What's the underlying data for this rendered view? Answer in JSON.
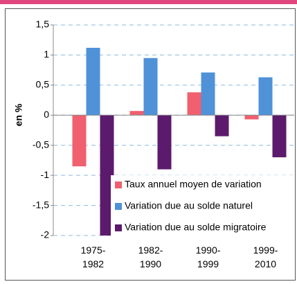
{
  "chart_data": {
    "type": "bar",
    "ylabel": "en %",
    "categories": [
      "1975-1982",
      "1982-1990",
      "1990-1999",
      "1999-2010"
    ],
    "series": [
      {
        "name": "Taux annuel moyen de variation",
        "color": "#f0606e",
        "values": [
          -0.85,
          0.07,
          0.38,
          -0.07
        ]
      },
      {
        "name": "Variation due au solde naturel",
        "color": "#4f92d8",
        "values": [
          1.12,
          0.95,
          0.71,
          0.63
        ]
      },
      {
        "name": "Variation due au solde migratoire",
        "color": "#5c1a6c",
        "values": [
          -2.0,
          -0.9,
          -0.35,
          -0.7
        ]
      }
    ],
    "ylim": [
      -2,
      1.5
    ],
    "yticks": [
      {
        "value": 1.5,
        "label": "1,5"
      },
      1,
      {
        "value": 0.5,
        "label": "0,5"
      },
      0,
      {
        "value": -0.5,
        "label": "-0,5"
      },
      -1,
      {
        "value": -1.5,
        "label": "-1,5"
      },
      -2
    ],
    "grid": true,
    "legend": "lower right"
  }
}
